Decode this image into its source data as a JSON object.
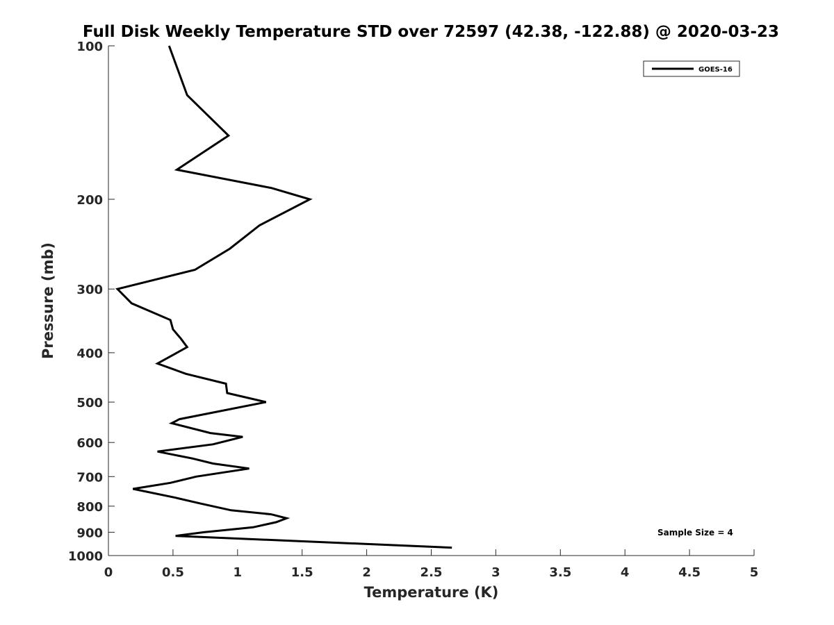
{
  "chart_data": {
    "type": "line",
    "title": "Full Disk Weekly Temperature STD over 72597 (42.38, -122.88) @ 2020-03-23",
    "xlabel": "Temperature (K)",
    "ylabel": "Pressure (mb)",
    "xlim": [
      0,
      5
    ],
    "ylim": [
      100,
      1000
    ],
    "y_scale": "log",
    "y_reversed": true,
    "grid": false,
    "legend_position": "top-right",
    "x_ticks": [
      "0",
      "0.5",
      "1",
      "1.5",
      "2",
      "2.5",
      "3",
      "3.5",
      "4",
      "4.5",
      "5"
    ],
    "y_ticks": [
      "100",
      "200",
      "300",
      "400",
      "500",
      "600",
      "700",
      "800",
      "900",
      "1000"
    ],
    "series": [
      {
        "name": "GOES-16",
        "color": "#000000",
        "points": [
          [
            0.47,
            100
          ],
          [
            0.61,
            125
          ],
          [
            0.93,
            150
          ],
          [
            0.53,
            175
          ],
          [
            1.26,
            190
          ],
          [
            1.56,
            200
          ],
          [
            1.17,
            225
          ],
          [
            0.94,
            250
          ],
          [
            0.67,
            275
          ],
          [
            0.07,
            300
          ],
          [
            0.18,
            320
          ],
          [
            0.48,
            345
          ],
          [
            0.5,
            360
          ],
          [
            0.56,
            375
          ],
          [
            0.61,
            390
          ],
          [
            0.38,
            420
          ],
          [
            0.6,
            440
          ],
          [
            0.91,
            460
          ],
          [
            0.92,
            480
          ],
          [
            1.22,
            500
          ],
          [
            0.55,
            540
          ],
          [
            0.49,
            550
          ],
          [
            0.79,
            575
          ],
          [
            1.04,
            585
          ],
          [
            0.81,
            605
          ],
          [
            0.38,
            625
          ],
          [
            0.65,
            645
          ],
          [
            0.81,
            660
          ],
          [
            1.09,
            675
          ],
          [
            0.68,
            700
          ],
          [
            0.48,
            720
          ],
          [
            0.19,
            740
          ],
          [
            0.52,
            770
          ],
          [
            0.71,
            790
          ],
          [
            0.95,
            815
          ],
          [
            1.26,
            830
          ],
          [
            1.38,
            845
          ],
          [
            1.3,
            860
          ],
          [
            1.12,
            880
          ],
          [
            0.74,
            900
          ],
          [
            0.52,
            915
          ],
          [
            2.66,
            965
          ]
        ]
      }
    ],
    "annotations": [
      "Sample Size = 4"
    ]
  }
}
